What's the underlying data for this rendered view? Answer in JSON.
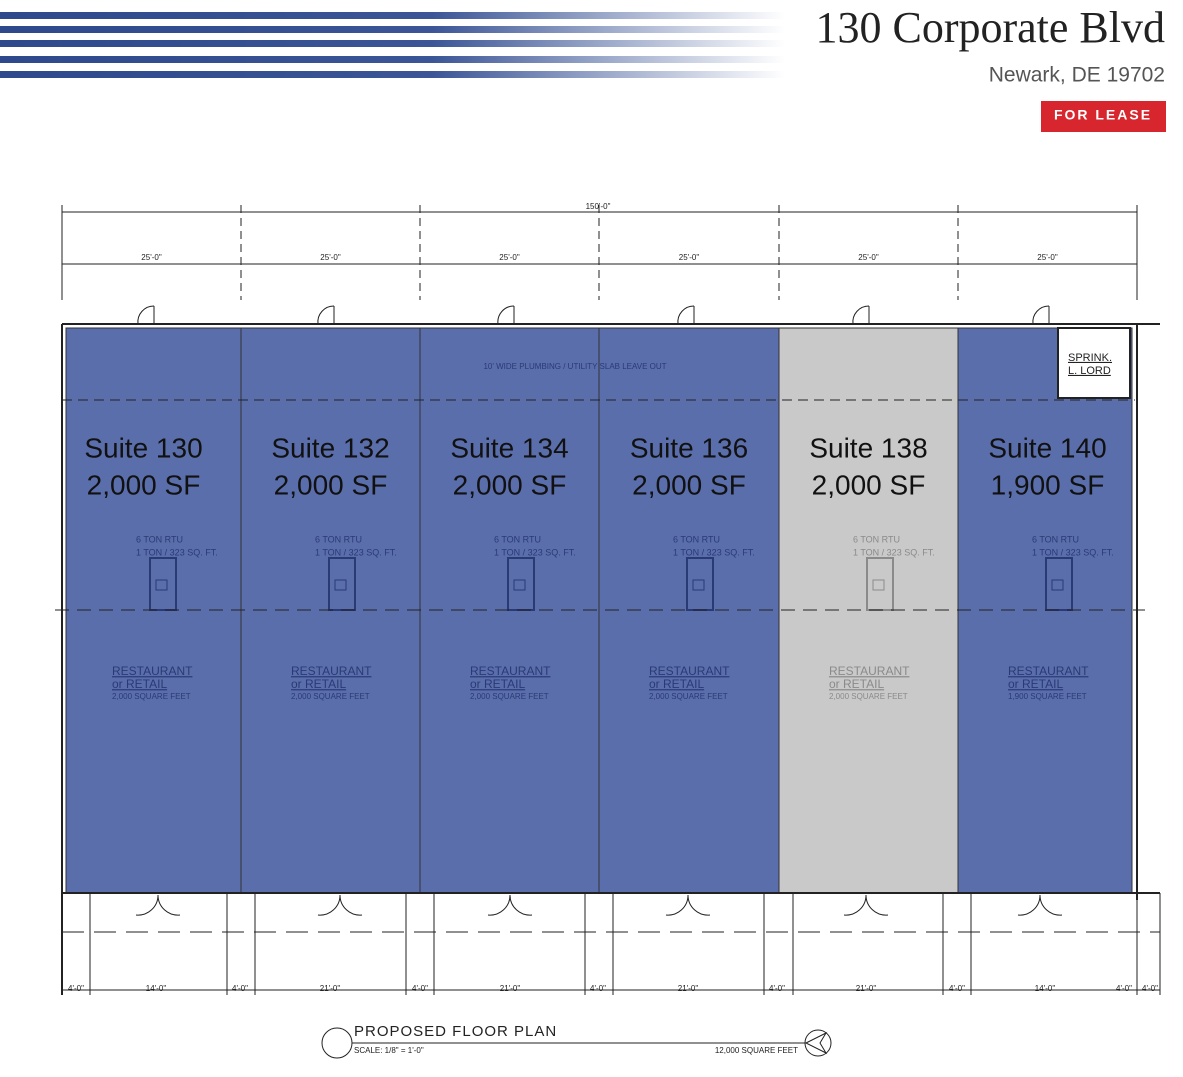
{
  "header": {
    "title": "130 Corporate Blvd",
    "address": "Newark, DE 19702",
    "badge": "FOR LEASE"
  },
  "plan": {
    "overall_dimension": "150'-0\"",
    "bay_dimensions": [
      "25'-0\"",
      "25'-0\"",
      "25'-0\"",
      "25'-0\"",
      "25'-0\"",
      "25'-0\""
    ],
    "slab_note": "10' WIDE PLUMBING / UTILITY SLAB LEAVE OUT",
    "sprinkler_room": [
      "SPRINK.",
      "L. LORD"
    ],
    "suites": [
      {
        "name": "Suite 130",
        "area": "2,000 SF",
        "rtu": [
          "6 TON RTU",
          "1 TON / 323 SQ. FT."
        ],
        "use": [
          "RESTAURANT",
          "or RETAIL"
        ],
        "size_note": "2,000 SQUARE FEET",
        "color": "#5b6eac"
      },
      {
        "name": "Suite 132",
        "area": "2,000 SF",
        "rtu": [
          "6 TON RTU",
          "1 TON / 323 SQ. FT."
        ],
        "use": [
          "RESTAURANT",
          "or RETAIL"
        ],
        "size_note": "2,000 SQUARE FEET",
        "color": "#5b6eac"
      },
      {
        "name": "Suite 134",
        "area": "2,000 SF",
        "rtu": [
          "6 TON RTU",
          "1 TON / 323 SQ. FT."
        ],
        "use": [
          "RESTAURANT",
          "or RETAIL"
        ],
        "size_note": "2,000 SQUARE FEET",
        "color": "#5b6eac"
      },
      {
        "name": "Suite 136",
        "area": "2,000 SF",
        "rtu": [
          "6 TON RTU",
          "1 TON / 323 SQ. FT."
        ],
        "use": [
          "RESTAURANT",
          "or RETAIL"
        ],
        "size_note": "2,000 SQUARE FEET",
        "color": "#5b6eac"
      },
      {
        "name": "Suite 138",
        "area": "2,000 SF",
        "rtu": [
          "6 TON RTU",
          "1 TON / 323 SQ. FT."
        ],
        "use": [
          "RESTAURANT",
          "or RETAIL"
        ],
        "size_note": "2,000 SQUARE FEET",
        "color": "#c9c9c9"
      },
      {
        "name": "Suite 140",
        "area": "1,900 SF",
        "rtu": [
          "6 TON RTU",
          "1 TON / 323 SQ. FT."
        ],
        "use": [
          "RESTAURANT",
          "or RETAIL"
        ],
        "size_note": "1,900 SQUARE FEET",
        "color": "#5b6eac"
      }
    ],
    "bottom_dimensions": [
      "4'-0\"",
      "14'-0\"",
      "4'-0\"",
      "21'-0\"",
      "4'-0\"",
      "21'-0\"",
      "4'-0\"",
      "21'-0\"",
      "4'-0\"",
      "21'-0\"",
      "4'-0\"",
      "14'-0\"",
      "4'-0\"",
      "4'-0\""
    ],
    "title_block": {
      "title": "PROPOSED FLOOR PLAN",
      "scale": "SCALE: 1/8\" = 1'-0\"",
      "total_area": "12,000 SQUARE FEET"
    }
  }
}
